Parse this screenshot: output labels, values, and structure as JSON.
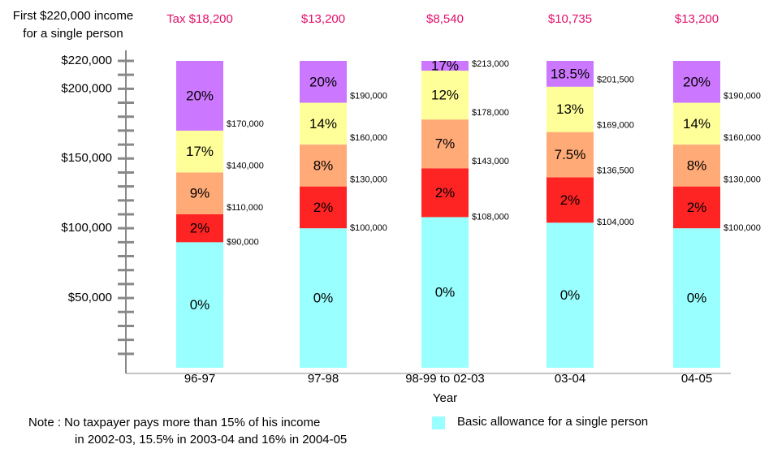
{
  "chart_data": {
    "type": "stacked_bar",
    "y_label": [
      "First $220,000 income",
      "for a single person"
    ],
    "x_label": "Year",
    "categories": [
      "96-97",
      "97-98",
      "98-99 to 02-03",
      "03-04",
      "04-05"
    ],
    "tax_labels": [
      "Tax $18,200",
      "$13,200",
      "$8,540",
      "$10,735",
      "$13,200"
    ],
    "series": [
      {
        "name": "Basic allowance for a single person",
        "color": "#99ffff",
        "values": [
          90000,
          100000,
          108000,
          104000,
          100000
        ],
        "value_labels": [
          "0%",
          "0%",
          "0%",
          "0%",
          "0%"
        ]
      },
      {
        "color": "#ff2424",
        "values": [
          20000,
          30000,
          35000,
          32500,
          30000
        ],
        "value_labels": [
          "2%",
          "2%",
          "2%",
          "2%",
          "2%"
        ]
      },
      {
        "color": "#ffaa77",
        "values": [
          30000,
          30000,
          35000,
          32500,
          30000
        ],
        "value_labels": [
          "9%",
          "8%",
          "7%",
          "7.5%",
          "8%"
        ]
      },
      {
        "color": "#ffff99",
        "values": [
          30000,
          30000,
          35000,
          32500,
          30000
        ],
        "value_labels": [
          "17%",
          "14%",
          "12%",
          "13%",
          "14%"
        ]
      },
      {
        "color": "#cc77ff",
        "values": [
          50000,
          30000,
          7000,
          18500,
          30000
        ],
        "value_labels": [
          "20%",
          "20%",
          "17%",
          "18.5%",
          "20%"
        ]
      }
    ],
    "boundary_labels": [
      [
        "$90,000",
        "$110,000",
        "$140,000",
        "$170,000"
      ],
      [
        "$100,000",
        "$130,000",
        "$160,000",
        "$190,000"
      ],
      [
        "$108,000",
        "$143,000",
        "$178,000",
        "$213,000"
      ],
      [
        "$104,000",
        "$136,500",
        "$169,000",
        "$201,500"
      ],
      [
        "$100,000",
        "$130,000",
        "$160,000",
        "$190,000"
      ]
    ],
    "ylim": [
      0,
      220000
    ],
    "yticks": [
      {
        "value": 50000,
        "label": "$50,000"
      },
      {
        "value": 100000,
        "label": "$100,000"
      },
      {
        "value": 150000,
        "label": "$150,000"
      },
      {
        "value": 200000,
        "label": "$200,000"
      },
      {
        "value": 220000,
        "label": "$220,000"
      }
    ],
    "minor_yticks": [
      10000,
      20000,
      30000,
      40000,
      60000,
      70000,
      80000,
      90000,
      110000,
      120000,
      130000,
      140000,
      160000,
      170000,
      180000,
      190000,
      210000
    ],
    "note": [
      "Note :   No taxpayer pays more than 15% of his income",
      "in 2002-03, 15.5% in 2003-04 and 16% in 2004-05"
    ],
    "tax_color": "#e0106a"
  }
}
